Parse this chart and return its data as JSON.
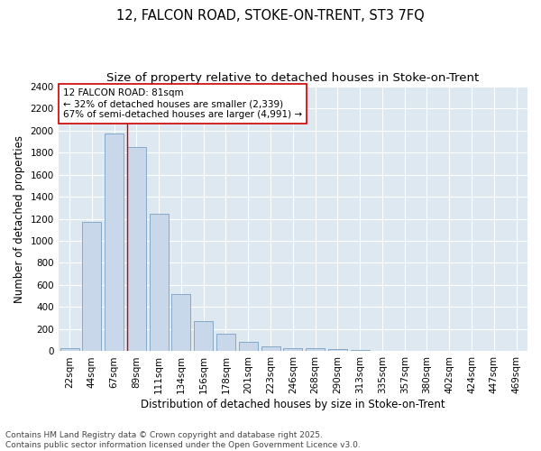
{
  "title_line1": "12, FALCON ROAD, STOKE-ON-TRENT, ST3 7FQ",
  "title_line2": "Size of property relative to detached houses in Stoke-on-Trent",
  "xlabel": "Distribution of detached houses by size in Stoke-on-Trent",
  "ylabel": "Number of detached properties",
  "categories": [
    "22sqm",
    "44sqm",
    "67sqm",
    "89sqm",
    "111sqm",
    "134sqm",
    "156sqm",
    "178sqm",
    "201sqm",
    "223sqm",
    "246sqm",
    "268sqm",
    "290sqm",
    "313sqm",
    "335sqm",
    "357sqm",
    "380sqm",
    "402sqm",
    "424sqm",
    "447sqm",
    "469sqm"
  ],
  "values": [
    25,
    1175,
    1975,
    1850,
    1245,
    515,
    275,
    155,
    85,
    48,
    30,
    28,
    20,
    8,
    4,
    3,
    2,
    2,
    1,
    1,
    1
  ],
  "bar_color": "#c8d8ea",
  "bar_edge_color": "#7aa0c0",
  "vline_x_index": 2.6,
  "vline_color": "#cc0000",
  "annotation_text": "12 FALCON ROAD: 81sqm\n← 32% of detached houses are smaller (2,339)\n67% of semi-detached houses are larger (4,991) →",
  "annotation_box_color": "#ffffff",
  "annotation_box_edge": "#cc0000",
  "ylim": [
    0,
    2400
  ],
  "yticks": [
    0,
    200,
    400,
    600,
    800,
    1000,
    1200,
    1400,
    1600,
    1800,
    2000,
    2200,
    2400
  ],
  "footer_line1": "Contains HM Land Registry data © Crown copyright and database right 2025.",
  "footer_line2": "Contains public sector information licensed under the Open Government Licence v3.0.",
  "fig_bg_color": "#ffffff",
  "plot_bg_color": "#dde8f0",
  "grid_color": "#ffffff",
  "title_fontsize": 10.5,
  "subtitle_fontsize": 9.5,
  "axis_label_fontsize": 8.5,
  "tick_fontsize": 7.5,
  "annotation_fontsize": 7.5,
  "footer_fontsize": 6.5
}
